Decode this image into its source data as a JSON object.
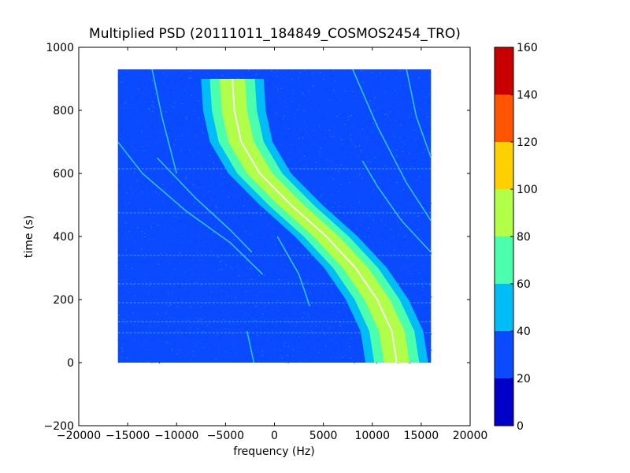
{
  "chart_data": {
    "type": "heatmap",
    "title": "Multiplied PSD (20111011_184849_COSMOS2454_TRO)",
    "xlabel": "frequency (Hz)",
    "ylabel": "time (s)",
    "xlim": [
      -20000,
      20000
    ],
    "ylim": [
      -200,
      1000
    ],
    "xticks": [
      -20000,
      -15000,
      -10000,
      -5000,
      0,
      5000,
      10000,
      15000,
      20000
    ],
    "xtick_labels": [
      "−20000",
      "−15000",
      "−10000",
      "−5000",
      "0",
      "5000",
      "10000",
      "15000",
      "20000"
    ],
    "yticks": [
      -200,
      0,
      200,
      400,
      600,
      800,
      1000
    ],
    "ytick_labels": [
      "−200",
      "0",
      "200",
      "400",
      "600",
      "800",
      "1000"
    ],
    "data_extent": {
      "x": [
        -16000,
        16000
      ],
      "y": [
        0,
        930
      ]
    },
    "colorbar": {
      "range": [
        0,
        160
      ],
      "ticks": [
        "0",
        "20",
        "40",
        "60",
        "80",
        "100",
        "120",
        "140",
        "160"
      ],
      "levels": [
        {
          "from": 0,
          "to": 20,
          "color": "#0000c8"
        },
        {
          "from": 20,
          "to": 40,
          "color": "#0a4bff"
        },
        {
          "from": 40,
          "to": 60,
          "color": "#00bdf6"
        },
        {
          "from": 60,
          "to": 80,
          "color": "#4bffad"
        },
        {
          "from": 80,
          "to": 100,
          "color": "#b2ff49"
        },
        {
          "from": 100,
          "to": 120,
          "color": "#ffd000"
        },
        {
          "from": 120,
          "to": 140,
          "color": "#ff5500"
        },
        {
          "from": 140,
          "to": 160,
          "color": "#c80000"
        }
      ]
    },
    "main_signal": {
      "points": [
        {
          "t": 0,
          "f": 12500
        },
        {
          "t": 100,
          "f": 12000
        },
        {
          "t": 200,
          "f": 10500
        },
        {
          "t": 300,
          "f": 8300
        },
        {
          "t": 400,
          "f": 5300
        },
        {
          "t": 500,
          "f": 1700
        },
        {
          "t": 600,
          "f": -1500
        },
        {
          "t": 700,
          "f": -3400
        },
        {
          "t": 800,
          "f": -4100
        },
        {
          "t": 900,
          "f": -4300
        }
      ],
      "core_value": 90,
      "halo_value": 70,
      "outer_value": 50
    },
    "faint_tracks": [
      {
        "points": [
          {
            "t": 930,
            "f": -12500
          },
          {
            "t": 780,
            "f": -11500
          },
          {
            "t": 600,
            "f": -10000
          }
        ]
      },
      {
        "points": [
          {
            "t": 650,
            "f": -12000
          },
          {
            "t": 520,
            "f": -8000
          },
          {
            "t": 420,
            "f": -4500
          },
          {
            "t": 350,
            "f": -2300
          }
        ]
      },
      {
        "points": [
          {
            "t": 700,
            "f": -16000
          },
          {
            "t": 600,
            "f": -13500
          },
          {
            "t": 480,
            "f": -9000
          },
          {
            "t": 380,
            "f": -4500
          },
          {
            "t": 280,
            "f": -1200
          }
        ]
      },
      {
        "points": [
          {
            "t": 930,
            "f": 8000
          },
          {
            "t": 750,
            "f": 10500
          },
          {
            "t": 570,
            "f": 13500
          },
          {
            "t": 450,
            "f": 16000
          }
        ]
      },
      {
        "points": [
          {
            "t": 930,
            "f": 13500
          },
          {
            "t": 780,
            "f": 14500
          },
          {
            "t": 650,
            "f": 16000
          }
        ]
      },
      {
        "points": [
          {
            "t": 640,
            "f": 9000
          },
          {
            "t": 560,
            "f": 10500
          },
          {
            "t": 450,
            "f": 13000
          },
          {
            "t": 350,
            "f": 16000
          }
        ]
      },
      {
        "points": [
          {
            "t": 400,
            "f": 300
          },
          {
            "t": 280,
            "f": 2500
          },
          {
            "t": 180,
            "f": 3600
          }
        ]
      },
      {
        "points": [
          {
            "t": 100,
            "f": -2800
          },
          {
            "t": 0,
            "f": -2100
          }
        ]
      }
    ],
    "horizontal_bands_t": [
      475,
      615,
      340,
      250,
      190,
      130,
      95
    ]
  }
}
